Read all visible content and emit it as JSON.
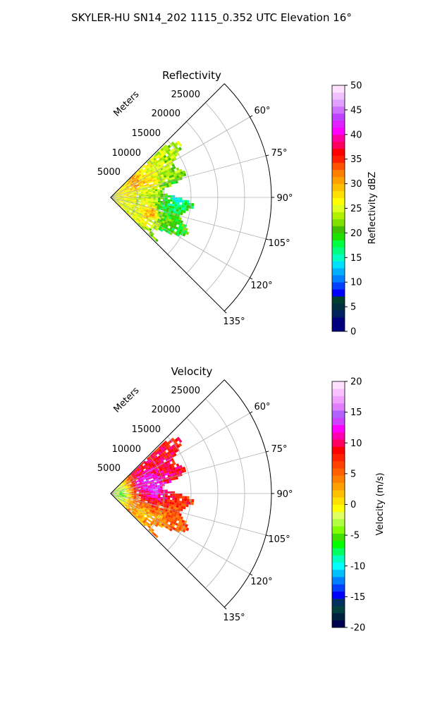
{
  "suptitle": "SKYLER-HU  SN14_202  1115_0.352 UTC Elevation 16°",
  "colors": {
    "reflectivity_scale": [
      "#000080",
      "#00007f",
      "#002060",
      "#003040",
      "#004030",
      "#0000ff",
      "#0040ff",
      "#0080ff",
      "#00b0ff",
      "#00e0ff",
      "#00ffc0",
      "#00ff80",
      "#00ff40",
      "#20e000",
      "#40c000",
      "#80e000",
      "#b0f000",
      "#e0ff20",
      "#ffff00",
      "#ffe000",
      "#ffc000",
      "#ffa000",
      "#ff8000",
      "#ff5000",
      "#ff2000",
      "#ff0000",
      "#ff0060",
      "#ff00a0",
      "#ff00ff",
      "#e020ff",
      "#c040ff",
      "#d070ff",
      "#e0a0ff",
      "#f0c0ff",
      "#ffe0ff"
    ],
    "velocity_scale": [
      "#000050",
      "#002040",
      "#004040",
      "#003060",
      "#0000ff",
      "#0040ff",
      "#0080ff",
      "#00c0ff",
      "#00ffff",
      "#00ffc0",
      "#00ff60",
      "#00ff00",
      "#40e000",
      "#80ff00",
      "#b0ff40",
      "#e0ff60",
      "#ffff00",
      "#ffe000",
      "#ffc000",
      "#ffa000",
      "#ff8000",
      "#ff6000",
      "#ff4000",
      "#ff2000",
      "#ff0000",
      "#ff0060",
      "#ff00b0",
      "#ff00ff",
      "#d040ff",
      "#b060ff",
      "#e080ff",
      "#f0a0ff",
      "#f8c0ff",
      "#ffe0ff"
    ],
    "grid": "#b0b0b0"
  },
  "panels": [
    {
      "key": "reflectivity",
      "title": "Reflectivity",
      "range_label": "Meters",
      "range_ticks": [
        "5000",
        "10000",
        "15000",
        "20000",
        "25000"
      ],
      "angle_ticks": [
        "60°",
        "75°",
        "90°",
        "105°",
        "120°",
        "135°"
      ],
      "colorbar": {
        "label": "Reflectivity dBZ",
        "ticks": [
          "0",
          "5",
          "10",
          "15",
          "20",
          "25",
          "30",
          "35",
          "40",
          "45",
          "50"
        ],
        "min": 0,
        "max": 50
      }
    },
    {
      "key": "velocity",
      "title": "Velocity",
      "range_label": "Meters",
      "range_ticks": [
        "5000",
        "10000",
        "15000",
        "20000",
        "25000"
      ],
      "angle_ticks": [
        "60°",
        "75°",
        "90°",
        "105°",
        "120°",
        "135°"
      ],
      "colorbar": {
        "label": "Velocity (m/s)",
        "ticks": [
          "-20",
          "-15",
          "-10",
          "-5",
          "0",
          "5",
          "10",
          "15",
          "20"
        ],
        "min": -20,
        "max": 20
      }
    }
  ],
  "chart_data": [
    {
      "type": "heatmap",
      "title": "Reflectivity",
      "projection": "polar sector",
      "theta_range_deg": [
        45,
        135
      ],
      "r_range_m": [
        0,
        30000
      ],
      "r_ticks": [
        5000,
        10000,
        15000,
        20000,
        25000
      ],
      "theta_ticks_deg": [
        60,
        75,
        90,
        105,
        120,
        135
      ],
      "range_label": "Meters",
      "colorbar_label": "Reflectivity dBZ",
      "value_range": [
        0,
        50
      ],
      "echo_extent_m": 17000,
      "value_summary": [
        {
          "theta_deg": 60,
          "r_m": 5000,
          "value": 32
        },
        {
          "theta_deg": 70,
          "r_m": 8000,
          "value": 28
        },
        {
          "theta_deg": 80,
          "r_m": 9000,
          "value": 22
        },
        {
          "theta_deg": 90,
          "r_m": 5000,
          "value": 24
        },
        {
          "theta_deg": 90,
          "r_m": 12000,
          "value": 13
        },
        {
          "theta_deg": 100,
          "r_m": 10000,
          "value": 16
        },
        {
          "theta_deg": 110,
          "r_m": 8000,
          "value": 33
        },
        {
          "theta_deg": 120,
          "r_m": 12000,
          "value": 18
        }
      ]
    },
    {
      "type": "heatmap",
      "title": "Velocity",
      "projection": "polar sector",
      "theta_range_deg": [
        45,
        135
      ],
      "r_range_m": [
        0,
        30000
      ],
      "r_ticks": [
        5000,
        10000,
        15000,
        20000,
        25000
      ],
      "theta_ticks_deg": [
        60,
        75,
        90,
        105,
        120,
        135
      ],
      "range_label": "Meters",
      "colorbar_label": "Velocity (m/s)",
      "value_range": [
        -20,
        20
      ],
      "echo_extent_m": 17000,
      "value_summary": [
        {
          "theta_deg": 90,
          "r_m": 2000,
          "value": -6
        },
        {
          "theta_deg": 75,
          "r_m": 6000,
          "value": 14
        },
        {
          "theta_deg": 85,
          "r_m": 8000,
          "value": 16
        },
        {
          "theta_deg": 95,
          "r_m": 9000,
          "value": 11
        },
        {
          "theta_deg": 105,
          "r_m": 10000,
          "value": 6
        },
        {
          "theta_deg": 115,
          "r_m": 10000,
          "value": 2
        },
        {
          "theta_deg": 120,
          "r_m": 7000,
          "value": 0
        }
      ]
    }
  ]
}
